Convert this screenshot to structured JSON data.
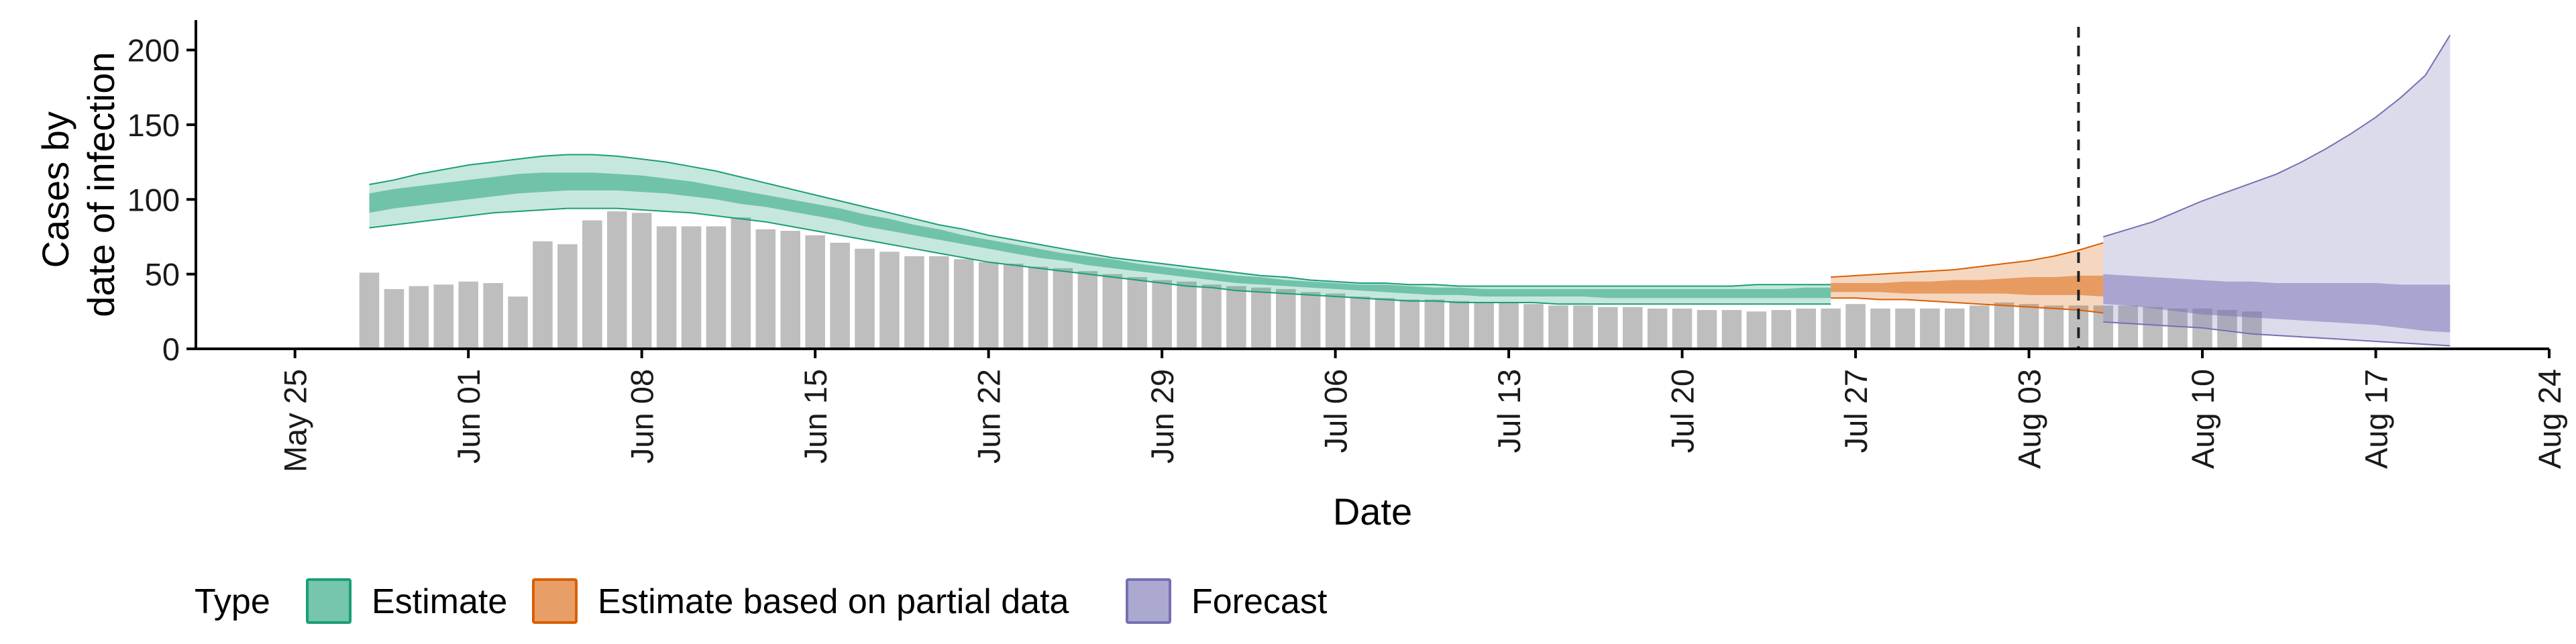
{
  "chart_data": {
    "type": "bar",
    "title": "",
    "xlabel": "Date",
    "ylabel_lines": [
      "Cases by",
      "date of infection"
    ],
    "ylim": [
      0,
      220
    ],
    "yticks": [
      0,
      50,
      100,
      150,
      200
    ],
    "x_range": [
      "2020-05-21",
      "2020-08-24"
    ],
    "xticks": [
      {
        "date": "2020-05-25",
        "label": "May 25"
      },
      {
        "date": "2020-06-01",
        "label": "Jun 01"
      },
      {
        "date": "2020-06-08",
        "label": "Jun 08"
      },
      {
        "date": "2020-06-15",
        "label": "Jun 15"
      },
      {
        "date": "2020-06-22",
        "label": "Jun 22"
      },
      {
        "date": "2020-06-29",
        "label": "Jun 29"
      },
      {
        "date": "2020-07-06",
        "label": "Jul 06"
      },
      {
        "date": "2020-07-13",
        "label": "Jul 13"
      },
      {
        "date": "2020-07-20",
        "label": "Jul 20"
      },
      {
        "date": "2020-07-27",
        "label": "Jul 27"
      },
      {
        "date": "2020-08-03",
        "label": "Aug 03"
      },
      {
        "date": "2020-08-10",
        "label": "Aug 10"
      },
      {
        "date": "2020-08-17",
        "label": "Aug 17"
      },
      {
        "date": "2020-08-24",
        "label": "Aug 24"
      }
    ],
    "vline_date": "2020-08-05",
    "observed": {
      "start_date": "2020-05-28",
      "color": "#bebebe",
      "values": [
        51,
        40,
        42,
        43,
        45,
        44,
        35,
        72,
        70,
        86,
        92,
        91,
        82,
        82,
        82,
        88,
        80,
        79,
        76,
        71,
        67,
        65,
        62,
        62,
        60,
        58,
        57,
        55,
        54,
        52,
        50,
        48,
        46,
        45,
        43,
        42,
        41,
        40,
        38,
        37,
        35,
        34,
        33,
        33,
        32,
        31,
        31,
        30,
        29,
        29,
        28,
        28,
        27,
        27,
        26,
        26,
        25,
        26,
        27,
        27,
        30,
        27,
        27,
        27,
        27,
        29,
        31,
        30,
        29,
        29,
        29,
        29,
        28,
        27,
        27,
        26,
        25
      ]
    },
    "bands": [
      {
        "type_name": "Estimate",
        "start_date": "2020-05-28",
        "fill": "#1b9e77",
        "stroke": "#1b9e77",
        "low90": [
          81,
          83,
          85,
          87,
          89,
          91,
          92,
          93,
          94,
          94,
          94,
          93,
          92,
          91,
          89,
          87,
          85,
          82,
          79,
          76,
          73,
          70,
          67,
          64,
          61,
          58,
          56,
          54,
          52,
          50,
          48,
          46,
          44,
          42,
          41,
          39,
          38,
          37,
          36,
          35,
          34,
          33,
          32,
          32,
          31,
          31,
          31,
          31,
          30,
          30,
          30,
          30,
          30,
          30,
          30,
          30,
          30,
          30,
          30,
          30
        ],
        "low50": [
          91,
          94,
          96,
          98,
          100,
          102,
          104,
          105,
          106,
          106,
          106,
          105,
          104,
          102,
          100,
          97,
          95,
          92,
          89,
          86,
          82,
          79,
          76,
          73,
          70,
          67,
          64,
          61,
          59,
          56,
          54,
          52,
          50,
          48,
          46,
          44,
          43,
          42,
          41,
          40,
          39,
          38,
          37,
          36,
          36,
          35,
          35,
          35,
          35,
          35,
          34,
          34,
          34,
          34,
          34,
          34,
          34,
          34,
          34,
          34
        ],
        "high50": [
          104,
          107,
          109,
          111,
          113,
          115,
          117,
          118,
          118,
          118,
          117,
          116,
          114,
          112,
          109,
          106,
          103,
          100,
          97,
          94,
          90,
          87,
          83,
          80,
          76,
          73,
          70,
          67,
          64,
          62,
          60,
          57,
          55,
          53,
          51,
          49,
          48,
          46,
          45,
          44,
          43,
          43,
          42,
          41,
          41,
          40,
          40,
          40,
          40,
          40,
          40,
          40,
          40,
          40,
          40,
          40,
          40,
          40,
          41,
          41
        ],
        "high90": [
          110,
          113,
          117,
          120,
          123,
          125,
          127,
          129,
          130,
          130,
          129,
          127,
          125,
          122,
          119,
          115,
          111,
          107,
          103,
          99,
          95,
          91,
          87,
          83,
          80,
          76,
          73,
          70,
          67,
          64,
          61,
          59,
          57,
          55,
          53,
          51,
          49,
          48,
          46,
          45,
          44,
          44,
          43,
          43,
          42,
          42,
          42,
          42,
          42,
          42,
          42,
          42,
          42,
          42,
          42,
          42,
          43,
          43,
          43,
          43
        ]
      },
      {
        "type_name": "Estimate based on partial data",
        "start_date": "2020-07-26",
        "fill": "#d95f02",
        "stroke": "#d95f02",
        "low90": [
          34,
          34,
          33,
          33,
          32,
          31,
          30,
          29,
          28,
          27,
          26,
          24
        ],
        "low50": [
          38,
          38,
          38,
          37,
          37,
          37,
          37,
          37,
          36,
          36,
          36,
          35
        ],
        "high50": [
          44,
          44,
          44,
          45,
          45,
          46,
          46,
          47,
          48,
          48,
          49,
          49
        ],
        "high90": [
          48,
          49,
          50,
          51,
          52,
          53,
          55,
          57,
          59,
          62,
          66,
          71
        ]
      },
      {
        "type_name": "Forecast",
        "start_date": "2020-08-06",
        "fill": "#7570b3",
        "stroke": "#7570b3",
        "low90": [
          18,
          17,
          16,
          15,
          14,
          12,
          10,
          9,
          8,
          7,
          6,
          5,
          4,
          3,
          2
        ],
        "low50": [
          30,
          29,
          27,
          25,
          23,
          22,
          21,
          20,
          19,
          18,
          17,
          16,
          14,
          12,
          11
        ],
        "high50": [
          50,
          49,
          48,
          47,
          46,
          45,
          45,
          44,
          44,
          44,
          44,
          44,
          43,
          43,
          43
        ],
        "high90": [
          75,
          80,
          85,
          92,
          99,
          105,
          111,
          117,
          125,
          134,
          144,
          155,
          168,
          183,
          210
        ]
      }
    ],
    "legend": {
      "title": "Type",
      "position": "bottom",
      "items": [
        "Estimate",
        "Estimate based on partial data",
        "Forecast"
      ]
    }
  }
}
